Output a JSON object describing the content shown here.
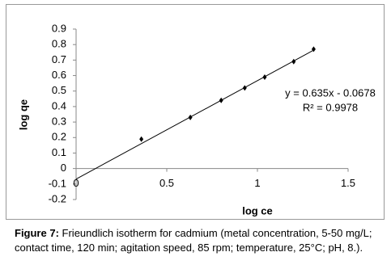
{
  "chart_data": {
    "type": "scatter",
    "x_label": "log ce",
    "y_label": "log qe",
    "x": [
      0.36,
      0.63,
      0.8,
      0.93,
      1.04,
      1.2,
      1.31
    ],
    "values": [
      0.19,
      0.33,
      0.44,
      0.52,
      0.59,
      0.69,
      0.77
    ],
    "color": "#000000",
    "xlim": [
      0,
      1.5
    ],
    "xticks": [
      0,
      0.5,
      1,
      1.5
    ],
    "ylim": [
      -0.2,
      0.9
    ],
    "yticks": [
      -0.2,
      -0.1,
      0,
      0.1,
      0.2,
      0.3,
      0.4,
      0.5,
      0.6,
      0.7,
      0.8,
      0.9
    ],
    "trendline": {
      "equation": "y = 0.635x - 0.0678",
      "r_squared": "R² = 0.9978",
      "slope": 0.635,
      "intercept": -0.0678,
      "x": [
        0,
        1.31
      ]
    },
    "caption_label": "Figure 7:",
    "caption": "Frieundlich isotherm for cadmium (metal concentration, 5-50 mg/L; contact time, 120 min; agitation speed, 85 rpm; temperature, 25°C; pH, 8.)."
  }
}
